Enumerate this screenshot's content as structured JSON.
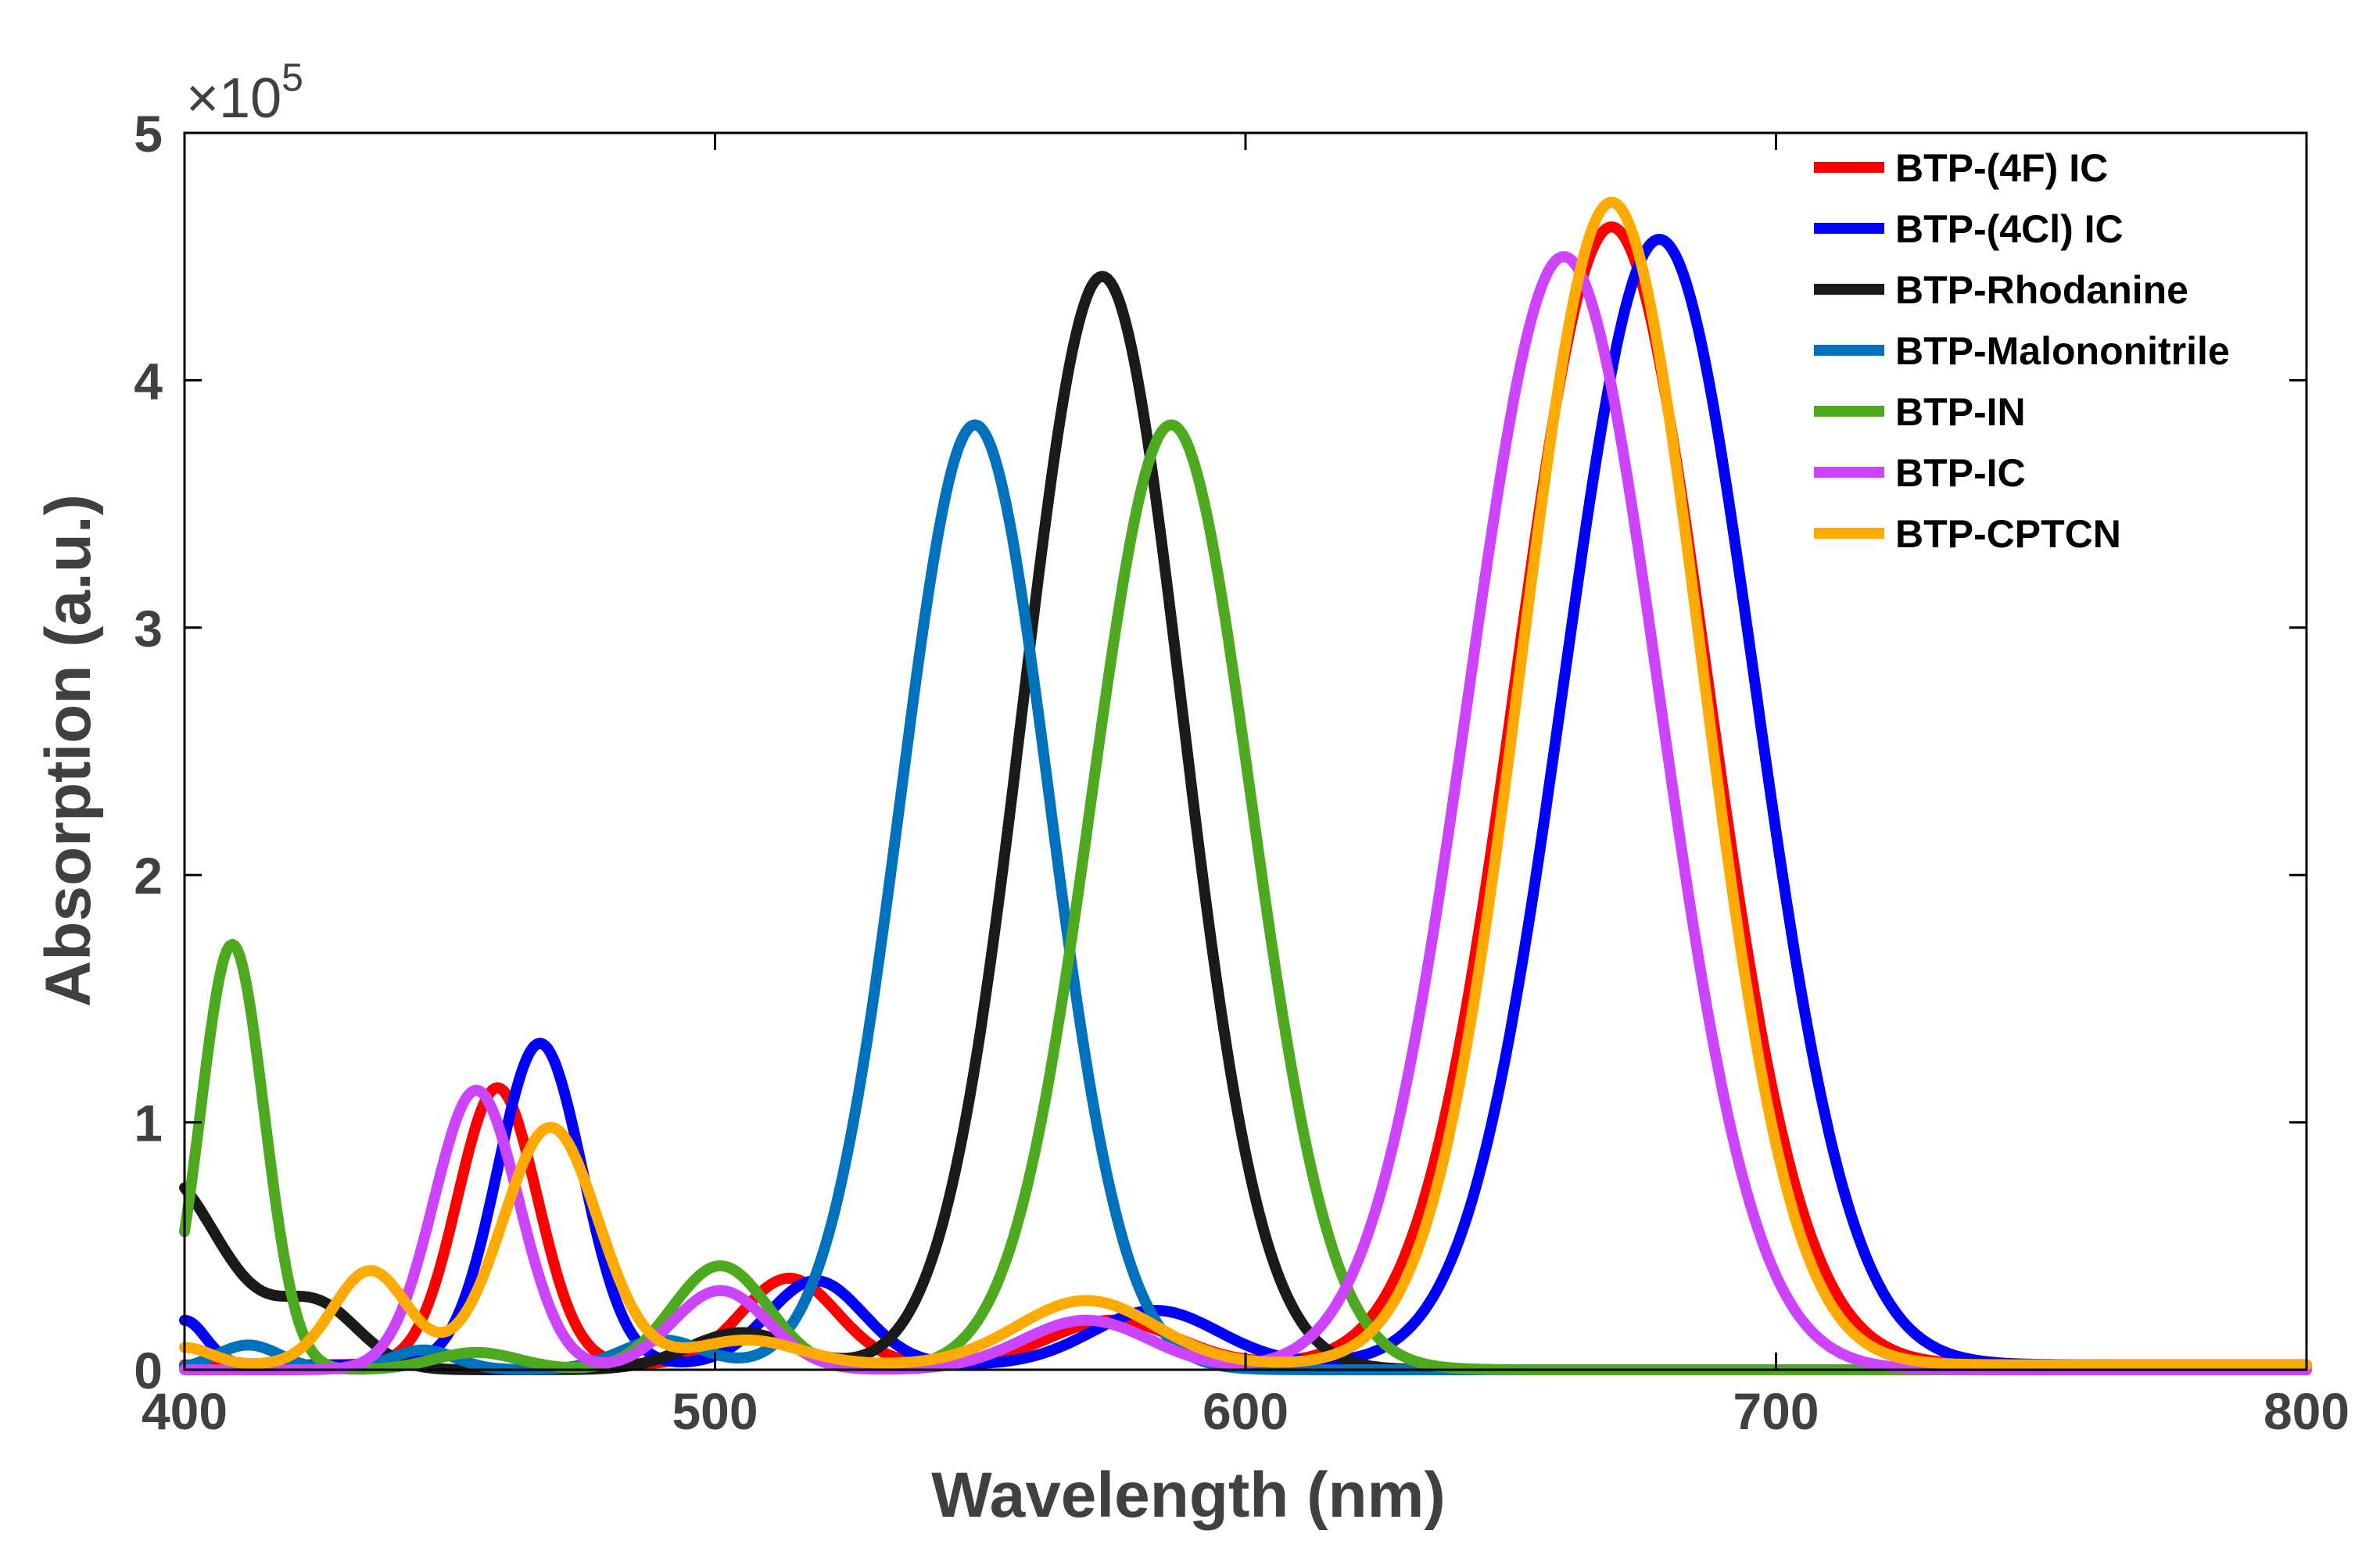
{
  "chart_data": {
    "type": "line",
    "title": "",
    "xlabel": "Wavelength (nm)",
    "ylabel": "Absorption (a.u.)",
    "y_multiplier_label": "×10",
    "y_multiplier_exponent": "5",
    "xlim": [
      400,
      800
    ],
    "ylim": [
      0,
      5
    ],
    "xticks": [
      400,
      500,
      600,
      700,
      800
    ],
    "yticks": [
      0,
      1,
      2,
      3,
      4,
      5
    ],
    "grid": false,
    "legend_position": "top-right",
    "series": [
      {
        "name": "BTP-(4F) IC",
        "color": "#ff0000",
        "peaks": [
          {
            "center": 459,
            "height": 1.12,
            "width": 7.5
          },
          {
            "center": 514,
            "height": 0.35,
            "width": 9
          },
          {
            "center": 575,
            "height": 0.18,
            "width": 12
          },
          {
            "center": 669,
            "height": 4.6,
            "width": 18
          }
        ],
        "baseline": 0.02
      },
      {
        "name": "BTP-(4Cl) IC",
        "color": "#0000ff",
        "peaks": [
          {
            "center": 400,
            "height": 0.18,
            "width": 4
          },
          {
            "center": 467,
            "height": 1.3,
            "width": 8
          },
          {
            "center": 519,
            "height": 0.34,
            "width": 9
          },
          {
            "center": 583,
            "height": 0.22,
            "width": 12
          },
          {
            "center": 678,
            "height": 4.55,
            "width": 18
          }
        ],
        "baseline": 0.02
      },
      {
        "name": "BTP-Rhodanine",
        "color": "#1a1a1a",
        "peaks": [
          {
            "center": 395,
            "height": 0.8,
            "width": 12
          },
          {
            "center": 425,
            "height": 0.25,
            "width": 8
          },
          {
            "center": 505,
            "height": 0.15,
            "width": 10
          },
          {
            "center": 573,
            "height": 4.42,
            "width": 15
          }
        ],
        "baseline": 0.0
      },
      {
        "name": "BTP-Malononitrile",
        "color": "#0072bd",
        "peaks": [
          {
            "center": 412,
            "height": 0.1,
            "width": 6
          },
          {
            "center": 445,
            "height": 0.08,
            "width": 6
          },
          {
            "center": 490,
            "height": 0.12,
            "width": 8
          },
          {
            "center": 549,
            "height": 3.82,
            "width": 14
          }
        ],
        "baseline": 0.0
      },
      {
        "name": "BTP-IN",
        "color": "#4daa1e",
        "peaks": [
          {
            "center": 409,
            "height": 1.72,
            "width": 6
          },
          {
            "center": 455,
            "height": 0.07,
            "width": 8
          },
          {
            "center": 501,
            "height": 0.42,
            "width": 9
          },
          {
            "center": 586,
            "height": 3.82,
            "width": 15
          }
        ],
        "baseline": 0.0
      },
      {
        "name": "BTP-IC",
        "color": "#cc44ff",
        "peaks": [
          {
            "center": 455,
            "height": 1.13,
            "width": 8
          },
          {
            "center": 501,
            "height": 0.32,
            "width": 9
          },
          {
            "center": 570,
            "height": 0.2,
            "width": 12
          },
          {
            "center": 660,
            "height": 4.5,
            "width": 18
          }
        ],
        "baseline": 0.0
      },
      {
        "name": "BTP-CPTCN",
        "color": "#ffaa00",
        "peaks": [
          {
            "center": 400,
            "height": 0.07,
            "width": 5
          },
          {
            "center": 435,
            "height": 0.38,
            "width": 7
          },
          {
            "center": 469,
            "height": 0.96,
            "width": 9
          },
          {
            "center": 506,
            "height": 0.1,
            "width": 10
          },
          {
            "center": 570,
            "height": 0.26,
            "width": 13
          },
          {
            "center": 669,
            "height": 4.7,
            "width": 17
          }
        ],
        "baseline": 0.02
      }
    ]
  }
}
